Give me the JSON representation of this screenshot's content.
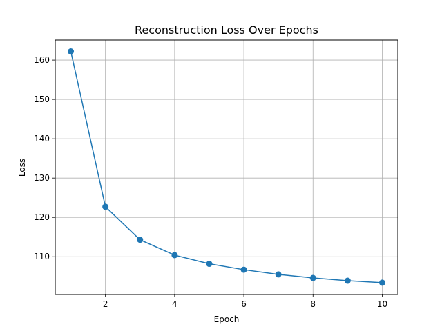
{
  "chart_data": {
    "type": "line",
    "title": "Reconstruction Loss Over Epochs",
    "xlabel": "Epoch",
    "ylabel": "Loss",
    "xlim": [
      0.55,
      10.45
    ],
    "ylim": [
      100.4,
      165.1
    ],
    "xticks": [
      2,
      4,
      6,
      8,
      10
    ],
    "yticks": [
      110,
      120,
      130,
      140,
      150,
      160
    ],
    "grid": true,
    "legend": "none",
    "color": "#1f77b4",
    "marker": "circle",
    "x": [
      1,
      2,
      3,
      4,
      5,
      6,
      7,
      8,
      9,
      10
    ],
    "y": [
      162.2,
      122.7,
      114.3,
      110.4,
      108.2,
      106.7,
      105.5,
      104.6,
      103.9,
      103.4
    ]
  }
}
